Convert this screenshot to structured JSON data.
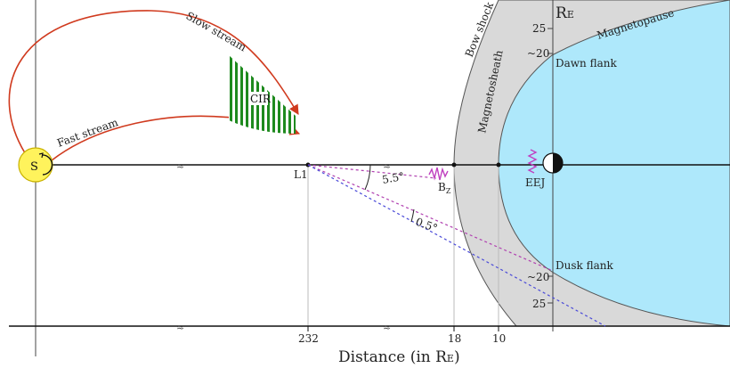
{
  "labels": {
    "sun": "S",
    "slow_stream": "Slow stream",
    "fast_stream": "Fast stream",
    "cir": "CIR",
    "l1": "L1",
    "bow_shock": "Bow shock",
    "magnetosheath": "Magnetosheath",
    "magnetopause": "Magnetopause",
    "dawn_flank": "Dawn flank",
    "dusk_flank": "Dusk flank",
    "eej": "EEJ",
    "bz": "B",
    "bz_sub": "Z",
    "angle_large": "5.5°",
    "angle_small": "0.5°",
    "re_axis_main": "R",
    "re_axis_sub": "E",
    "x_axis_title": "Distance (in R",
    "x_axis_title_sub": "E",
    "x_axis_title_end": ")"
  },
  "y_ticks": {
    "top_outer": "25",
    "top_inner": "~20",
    "bottom_inner": "~20",
    "bottom_outer": "25"
  },
  "x_ticks": [
    "232",
    "18",
    "10"
  ],
  "colors": {
    "magnetosphere": "#aee8fb",
    "magnetosheath": "#d9d9d9",
    "sun": "#fff35c",
    "stream_arrow": "#d03a1e",
    "cir_fill": "#1e8a1e",
    "bz_line": "#b040b0",
    "dusk_line": "#4a4ad8"
  }
}
